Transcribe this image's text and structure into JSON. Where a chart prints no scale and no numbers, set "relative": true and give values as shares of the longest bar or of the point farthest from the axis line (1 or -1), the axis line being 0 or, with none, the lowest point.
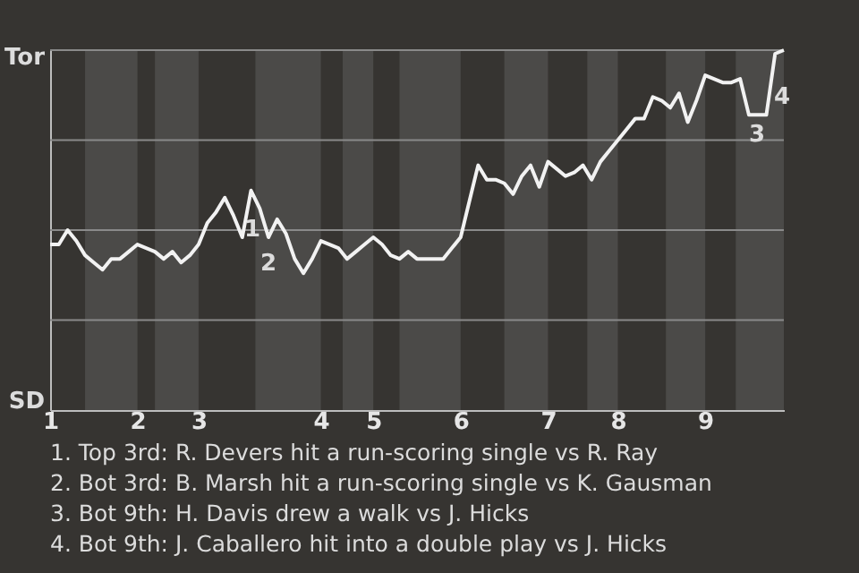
{
  "chart_data": {
    "type": "line",
    "relative": true,
    "categories": [
      "1",
      null,
      null,
      null,
      null,
      null,
      null,
      null,
      null,
      null,
      "2",
      null,
      null,
      null,
      null,
      null,
      null,
      "3",
      null,
      null,
      null,
      null,
      null,
      null,
      null,
      null,
      null,
      null,
      null,
      null,
      null,
      "4",
      null,
      null,
      null,
      null,
      null,
      "5",
      null,
      null,
      null,
      null,
      null,
      null,
      null,
      null,
      null,
      "6",
      null,
      null,
      null,
      null,
      null,
      null,
      null,
      null,
      null,
      "7",
      null,
      null,
      null,
      null,
      null,
      null,
      null,
      "8",
      null,
      null,
      null,
      null,
      null,
      null,
      null,
      null,
      null,
      "9",
      null,
      null,
      null,
      null,
      null,
      null,
      null,
      null,
      null
    ],
    "series": [
      {
        "color": "#f2f2f2",
        "values": [
          0.46,
          0.46,
          0.5,
          0.47,
          0.43,
          0.41,
          0.39,
          0.42,
          0.42,
          0.44,
          0.46,
          0.45,
          0.44,
          0.42,
          0.44,
          0.41,
          0.43,
          0.46,
          0.52,
          0.55,
          0.59,
          0.54,
          0.48,
          0.61,
          0.56,
          0.48,
          0.53,
          0.49,
          0.42,
          0.38,
          0.42,
          0.47,
          0.46,
          0.45,
          0.42,
          0.44,
          0.46,
          0.48,
          0.46,
          0.43,
          0.42,
          0.44,
          0.42,
          0.42,
          0.42,
          0.42,
          0.45,
          0.48,
          0.58,
          0.68,
          0.64,
          0.64,
          0.63,
          0.6,
          0.65,
          0.68,
          0.62,
          0.69,
          0.67,
          0.65,
          0.66,
          0.68,
          0.64,
          0.69,
          0.72,
          0.75,
          0.78,
          0.81,
          0.81,
          0.87,
          0.86,
          0.84,
          0.88,
          0.8,
          0.86,
          0.93,
          0.92,
          0.91,
          0.91,
          0.92,
          0.82,
          0.82,
          0.82,
          0.99,
          1.0
        ]
      }
    ],
    "annotations": [
      "Tor",
      "SD",
      "1",
      "2",
      "3",
      "4",
      "1. Top 3rd: R. Devers hit a run-scoring single vs R. Ray",
      "2. Bot 3rd: B. Marsh hit a run-scoring single vs K. Gausman",
      "3. Bot 9th: H. Davis drew a walk vs J. Hicks",
      "4. Bot 9th: J. Caballero hit into a double play vs J. Hicks"
    ]
  }
}
